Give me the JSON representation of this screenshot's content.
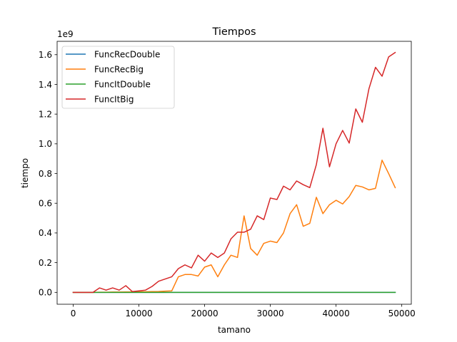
{
  "chart_data": {
    "type": "line",
    "title": "Tiempos",
    "xlabel": "tamano",
    "ylabel": "tiempo",
    "y_offset_label": "1e9",
    "xlim": [
      -2450,
      51450
    ],
    "ylim": [
      -0.08,
      1.69
    ],
    "xticks": [
      0,
      10000,
      20000,
      30000,
      40000,
      50000
    ],
    "xtick_labels": [
      "0",
      "10000",
      "20000",
      "30000",
      "40000",
      "50000"
    ],
    "yticks": [
      0.0,
      0.2,
      0.4,
      0.6,
      0.8,
      1.0,
      1.2,
      1.4,
      1.6
    ],
    "ytick_labels": [
      "0.0",
      "0.2",
      "0.4",
      "0.6",
      "0.8",
      "1.0",
      "1.2",
      "1.4",
      "1.6"
    ],
    "grid": false,
    "legend_position": "top-left",
    "x": [
      0,
      1000,
      2000,
      3000,
      4000,
      5000,
      6000,
      7000,
      8000,
      9000,
      10000,
      11000,
      12000,
      13000,
      14000,
      15000,
      16000,
      17000,
      18000,
      19000,
      20000,
      21000,
      22000,
      23000,
      24000,
      25000,
      26000,
      27000,
      28000,
      29000,
      30000,
      31000,
      32000,
      33000,
      34000,
      35000,
      36000,
      37000,
      38000,
      39000,
      40000,
      41000,
      42000,
      43000,
      44000,
      45000,
      46000,
      47000,
      48000,
      49000
    ],
    "series": [
      {
        "name": "FuncRecDouble",
        "color": "#1f77b4",
        "values": [
          0,
          0,
          0,
          0,
          0,
          0,
          0,
          0,
          0,
          0,
          0,
          0,
          0,
          0,
          0,
          0,
          0,
          0,
          0,
          0,
          0,
          0,
          0,
          0,
          0,
          0,
          0,
          0,
          0,
          0,
          0,
          0,
          0,
          0,
          0,
          0,
          0,
          0,
          0,
          0,
          0,
          0,
          0,
          0,
          0,
          0,
          0,
          0,
          0,
          0
        ]
      },
      {
        "name": "FuncRecBig",
        "color": "#ff7f0e",
        "values": [
          0,
          0,
          0,
          0,
          0.001,
          0.001,
          0.002,
          0.002,
          0.003,
          0.003,
          0.004,
          0.004,
          0.005,
          0.006,
          0.008,
          0.01,
          0.105,
          0.12,
          0.12,
          0.11,
          0.17,
          0.185,
          0.105,
          0.185,
          0.25,
          0.235,
          0.515,
          0.295,
          0.25,
          0.33,
          0.345,
          0.335,
          0.4,
          0.53,
          0.59,
          0.445,
          0.465,
          0.64,
          0.53,
          0.59,
          0.62,
          0.595,
          0.645,
          0.72,
          0.71,
          0.69,
          0.7,
          0.89,
          0.8,
          0.705
        ]
      },
      {
        "name": "FuncItDouble",
        "color": "#2ca02c",
        "values": [
          0,
          0,
          0,
          0,
          0,
          0,
          0,
          0,
          0,
          0,
          0,
          0,
          0,
          0,
          0,
          0,
          0,
          0,
          0,
          0,
          0,
          0,
          0,
          0,
          0,
          0,
          0,
          0,
          0,
          0,
          0,
          0,
          0,
          0,
          0,
          0,
          0,
          0,
          0,
          0,
          0,
          0,
          0,
          0,
          0,
          0,
          0,
          0,
          0,
          0
        ]
      },
      {
        "name": "FuncItBig",
        "color": "#d62728",
        "values": [
          0,
          0,
          0,
          0,
          0.03,
          0.015,
          0.03,
          0.015,
          0.045,
          0.005,
          0.01,
          0.015,
          0.04,
          0.075,
          0.09,
          0.105,
          0.16,
          0.185,
          0.165,
          0.25,
          0.21,
          0.265,
          0.235,
          0.265,
          0.36,
          0.405,
          0.405,
          0.425,
          0.515,
          0.49,
          0.635,
          0.625,
          0.715,
          0.69,
          0.75,
          0.725,
          0.705,
          0.86,
          1.105,
          0.845,
          1.0,
          1.09,
          1.005,
          1.235,
          1.145,
          1.37,
          1.515,
          1.455,
          1.585,
          1.615
        ]
      }
    ]
  }
}
